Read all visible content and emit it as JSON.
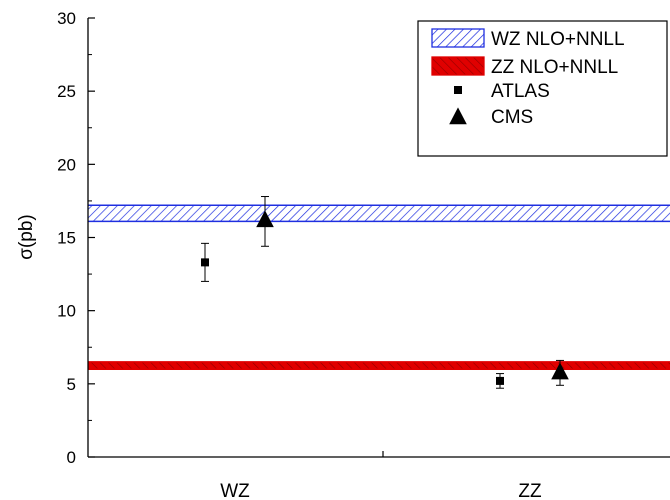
{
  "chart_data": {
    "type": "scatter",
    "ylabel": "σ(pb)",
    "ylim": [
      0,
      30
    ],
    "yticks": [
      "0",
      "5",
      "10",
      "15",
      "20",
      "25",
      "30"
    ],
    "categories": [
      "WZ",
      "ZZ"
    ],
    "bands": [
      {
        "name": "WZ NLO+NNLL",
        "low": 16.1,
        "high": 17.2,
        "color": "#1f2fe0",
        "fill": "hatched"
      },
      {
        "name": "ZZ NLO+NNLL",
        "low": 6.0,
        "high": 6.5,
        "color": "#e00000",
        "fill": "hatched-solid"
      }
    ],
    "series": [
      {
        "name": "ATLAS",
        "marker": "square",
        "points": [
          {
            "category": "WZ",
            "y": 13.3,
            "err_low": 1.3,
            "err_high": 1.3
          },
          {
            "category": "ZZ",
            "y": 5.2,
            "err_low": 0.5,
            "err_high": 0.5
          }
        ]
      },
      {
        "name": "CMS",
        "marker": "triangle",
        "points": [
          {
            "category": "WZ",
            "y": 16.2,
            "err_low": 1.8,
            "err_high": 1.6
          },
          {
            "category": "ZZ",
            "y": 5.8,
            "err_low": 0.9,
            "err_high": 0.8
          }
        ]
      }
    ],
    "legend": {
      "position": "top-right",
      "entries": [
        "WZ NLO+NNLL",
        "ZZ NLO+NNLL",
        "ATLAS",
        "CMS"
      ]
    }
  }
}
